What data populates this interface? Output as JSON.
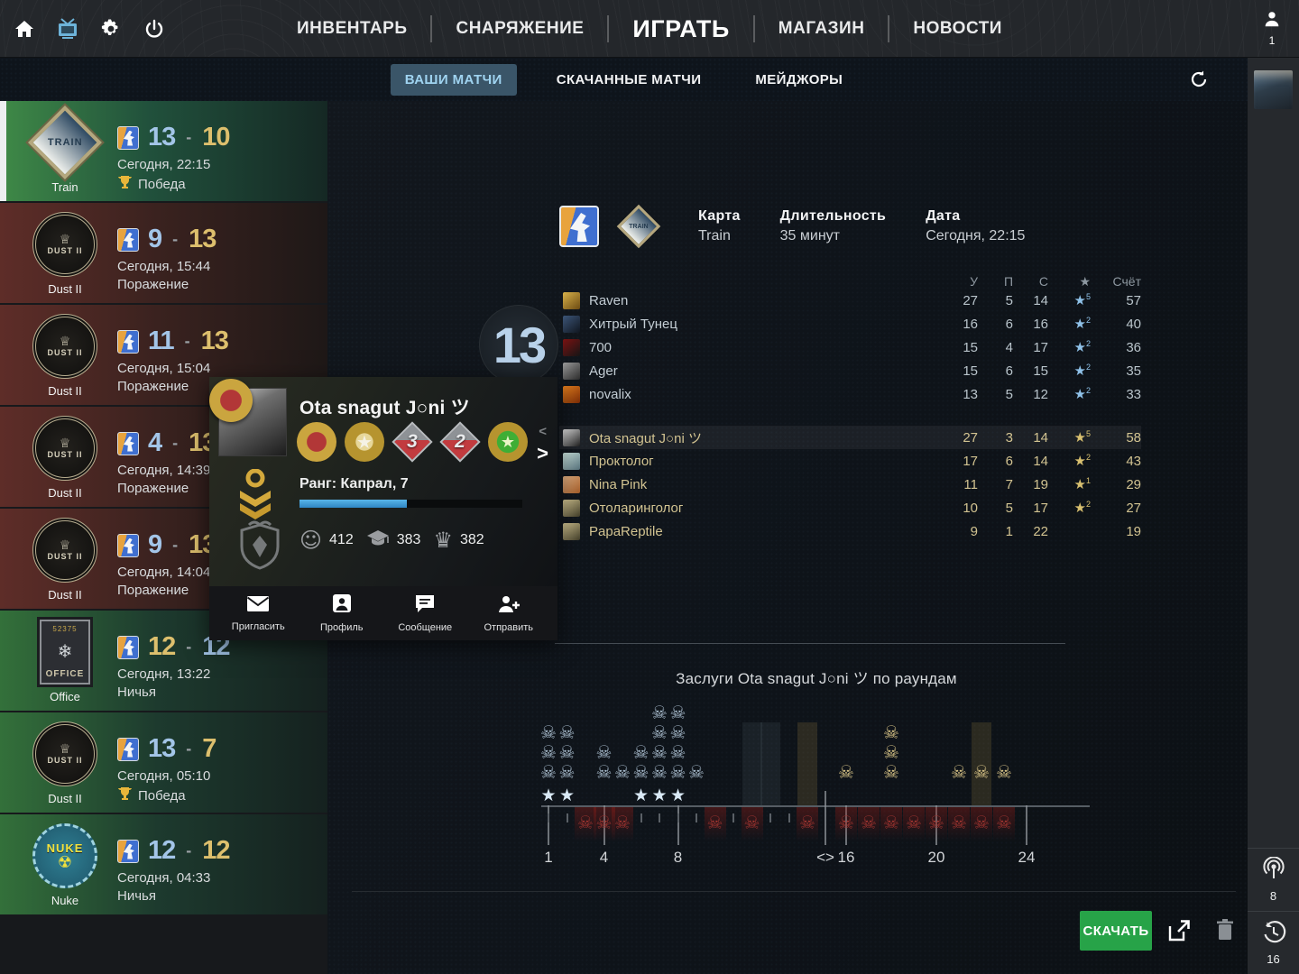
{
  "topnav": {
    "icons": [
      {
        "name": "home-icon"
      },
      {
        "name": "tv-icon",
        "active": true
      },
      {
        "name": "gear-icon"
      },
      {
        "name": "power-icon"
      }
    ],
    "items": [
      {
        "label": "ИНВЕНТАРЬ",
        "active": false
      },
      {
        "label": "СНАРЯЖЕНИЕ",
        "active": false
      },
      {
        "label": "ИГРАТЬ",
        "active": true
      },
      {
        "label": "МАГАЗИН",
        "active": false
      },
      {
        "label": "НОВОСТИ",
        "active": false
      }
    ],
    "user_count": "1"
  },
  "tabbar": {
    "tabs": [
      {
        "label": "ВАШИ МАТЧИ",
        "active": true
      },
      {
        "label": "СКАЧАННЫЕ МАТЧИ",
        "active": false
      },
      {
        "label": "МЕЙДЖОРЫ",
        "active": false
      }
    ]
  },
  "sidebar": {
    "matches": [
      {
        "map": "Train",
        "badge": "train",
        "score_left": "13",
        "score_right": "10",
        "left_color": "blue",
        "right_color": "gold",
        "date": "Сегодня, 22:15",
        "result": "Победа",
        "result_type": "win",
        "trophy": true,
        "selected": true
      },
      {
        "map": "Dust II",
        "badge": "dust2",
        "score_left": "9",
        "score_right": "13",
        "left_color": "blue",
        "right_color": "gold",
        "date": "Сегодня, 15:44",
        "result": "Поражение",
        "result_type": "loss",
        "trophy": false,
        "selected": false
      },
      {
        "map": "Dust II",
        "badge": "dust2",
        "score_left": "11",
        "score_right": "13",
        "left_color": "blue",
        "right_color": "gold",
        "date": "Сегодня, 15:04",
        "result": "Поражение",
        "result_type": "loss",
        "trophy": false,
        "selected": false
      },
      {
        "map": "Dust II",
        "badge": "dust2",
        "score_left": "4",
        "score_right": "13",
        "left_color": "blue",
        "right_color": "gold",
        "date": "Сегодня, 14:39",
        "result": "Поражение",
        "result_type": "loss",
        "trophy": false,
        "selected": false
      },
      {
        "map": "Dust II",
        "badge": "dust2",
        "score_left": "9",
        "score_right": "13",
        "left_color": "blue",
        "right_color": "gold",
        "date": "Сегодня, 14:04",
        "result": "Поражение",
        "result_type": "loss",
        "trophy": false,
        "selected": false
      },
      {
        "map": "Office",
        "badge": "office",
        "score_left": "12",
        "score_right": "12",
        "left_color": "gold",
        "right_color": "blue",
        "date": "Сегодня, 13:22",
        "result": "Ничья",
        "result_type": "draw",
        "trophy": false,
        "selected": false
      },
      {
        "map": "Dust II",
        "badge": "dust2",
        "score_left": "13",
        "score_right": "7",
        "left_color": "blue",
        "right_color": "gold",
        "date": "Сегодня, 05:10",
        "result": "Победа",
        "result_type": "win",
        "trophy": true,
        "selected": false
      },
      {
        "map": "Nuke",
        "badge": "nuke",
        "score_left": "12",
        "score_right": "12",
        "left_color": "blue",
        "right_color": "gold",
        "date": "Сегодня, 04:33",
        "result": "Ничья",
        "result_type": "draw",
        "trophy": false,
        "selected": false
      }
    ]
  },
  "match": {
    "header": {
      "map_label": "Карта",
      "map_value": "Train",
      "duration_label": "Длительность",
      "duration_value": "35 минут",
      "date_label": "Дата",
      "date_value": "Сегодня, 22:15"
    },
    "columns": [
      "У",
      "П",
      "С",
      "★",
      "Счёт"
    ],
    "team1": {
      "big_score": "13",
      "players": [
        {
          "name": "Raven",
          "k": "27",
          "a": "5",
          "d": "14",
          "stars": "5",
          "score": "57",
          "avatar": "#d9b24a,#6b4a12",
          "highlight": false
        },
        {
          "name": "Хитрый Тунец",
          "k": "16",
          "a": "6",
          "d": "16",
          "stars": "2",
          "score": "40",
          "avatar": "#3c5578,#10161f",
          "highlight": false
        },
        {
          "name": "700",
          "k": "15",
          "a": "4",
          "d": "17",
          "stars": "2",
          "score": "36",
          "avatar": "#7a1212,#151515",
          "highlight": false
        },
        {
          "name": "Ager",
          "k": "15",
          "a": "6",
          "d": "15",
          "stars": "2",
          "score": "35",
          "avatar": "#9b9b9b,#2c2c2c",
          "highlight": false
        },
        {
          "name": "novalix",
          "k": "13",
          "a": "5",
          "d": "12",
          "stars": "2",
          "score": "33",
          "avatar": "#e8821f,#7a2b06",
          "highlight": false
        }
      ]
    },
    "team2": {
      "players": [
        {
          "name": "Ota snagut J○ni ツ",
          "k": "27",
          "a": "3",
          "d": "14",
          "stars": "5",
          "score": "58",
          "avatar": "#e0e0e0,#1d1d1d",
          "highlight": true
        },
        {
          "name": "Проктолог",
          "k": "17",
          "a": "6",
          "d": "14",
          "stars": "2",
          "score": "43",
          "avatar": "#cfe8e2,#55707a",
          "highlight": false
        },
        {
          "name": "Nina Pink",
          "k": "11",
          "a": "7",
          "d": "19",
          "stars": "1",
          "score": "29",
          "avatar": "#e2b183,#a35c28",
          "highlight": false
        },
        {
          "name": "Отоларинголог",
          "k": "10",
          "a": "5",
          "d": "17",
          "stars": "2",
          "score": "27",
          "avatar": "#d3c592,#403c28",
          "highlight": false
        },
        {
          "name": "PapaReptile",
          "k": "9",
          "a": "1",
          "d": "22",
          "stars": "",
          "score": "19",
          "avatar": "#d3c592,#403c28",
          "highlight": false
        }
      ]
    }
  },
  "popup": {
    "name": "Ota snagut J○ni ツ",
    "rank_label": "Ранг: Капрал, 7",
    "rank_progress_pct": 48,
    "medals": [
      {
        "name": "service-medal",
        "style": "coin-red",
        "num": ""
      },
      {
        "name": "star-medal",
        "style": "gold-star",
        "num": ""
      },
      {
        "name": "operation-pin-3",
        "style": "pin",
        "num": "3"
      },
      {
        "name": "operation-pin-2",
        "style": "pin",
        "num": "2"
      },
      {
        "name": "green-medal",
        "style": "coin-green",
        "num": ""
      }
    ],
    "stats": [
      {
        "icon": "smiley-icon",
        "glyph": "☺",
        "value": "412"
      },
      {
        "icon": "graduation-icon",
        "glyph": "",
        "value": "383"
      },
      {
        "icon": "crown-icon",
        "glyph": "♛",
        "value": "382"
      }
    ],
    "actions": [
      {
        "icon": "envelope-icon",
        "label": "Пригласить"
      },
      {
        "icon": "profile-icon",
        "label": "Профиль"
      },
      {
        "icon": "message-icon",
        "label": "Сообщение"
      },
      {
        "icon": "send-icon",
        "label": "Отправить"
      }
    ]
  },
  "chart_data": {
    "type": "round-timeline",
    "title": "Заслуги Ota snagut J○ni ツ по раундам",
    "legend": "skulls above axis = kills per round (blue first half, gold second half); stars = round MVP; red skulls below axis = player died that round",
    "halftime_after_round": 15,
    "halftime_label": "<>",
    "axis_ticks": [
      1,
      4,
      8,
      16,
      20,
      24
    ],
    "xlim": [
      1,
      24
    ],
    "first_half_color": "#a8bccd",
    "second_half_color": "#d6c286",
    "death_color": "#9e3430",
    "rounds": [
      {
        "r": 1,
        "kills": 3,
        "death": false,
        "mvp": true,
        "highlight": ""
      },
      {
        "r": 2,
        "kills": 3,
        "death": false,
        "mvp": true,
        "highlight": ""
      },
      {
        "r": 3,
        "kills": 0,
        "death": true,
        "mvp": false,
        "highlight": ""
      },
      {
        "r": 4,
        "kills": 2,
        "death": true,
        "mvp": false,
        "highlight": ""
      },
      {
        "r": 5,
        "kills": 1,
        "death": true,
        "mvp": false,
        "highlight": ""
      },
      {
        "r": 6,
        "kills": 2,
        "death": false,
        "mvp": true,
        "highlight": ""
      },
      {
        "r": 7,
        "kills": 4,
        "death": false,
        "mvp": true,
        "highlight": ""
      },
      {
        "r": 8,
        "kills": 4,
        "death": false,
        "mvp": true,
        "highlight": ""
      },
      {
        "r": 9,
        "kills": 1,
        "death": false,
        "mvp": false,
        "highlight": ""
      },
      {
        "r": 10,
        "kills": 0,
        "death": true,
        "mvp": false,
        "highlight": ""
      },
      {
        "r": 11,
        "kills": 0,
        "death": false,
        "mvp": false,
        "highlight": ""
      },
      {
        "r": 12,
        "kills": 0,
        "death": true,
        "mvp": false,
        "highlight": "grey"
      },
      {
        "r": 13,
        "kills": 0,
        "death": false,
        "mvp": false,
        "highlight": "grey"
      },
      {
        "r": 14,
        "kills": 0,
        "death": false,
        "mvp": false,
        "highlight": ""
      },
      {
        "r": 15,
        "kills": 0,
        "death": true,
        "mvp": false,
        "highlight": "gold"
      },
      {
        "r": 16,
        "kills": 1,
        "death": true,
        "mvp": false,
        "highlight": ""
      },
      {
        "r": 17,
        "kills": 0,
        "death": true,
        "mvp": false,
        "highlight": ""
      },
      {
        "r": 18,
        "kills": 3,
        "death": true,
        "mvp": false,
        "highlight": ""
      },
      {
        "r": 19,
        "kills": 0,
        "death": true,
        "mvp": false,
        "highlight": ""
      },
      {
        "r": 20,
        "kills": 0,
        "death": true,
        "mvp": false,
        "highlight": ""
      },
      {
        "r": 21,
        "kills": 1,
        "death": true,
        "mvp": false,
        "highlight": ""
      },
      {
        "r": 22,
        "kills": 1,
        "death": true,
        "mvp": false,
        "highlight": "gold"
      },
      {
        "r": 23,
        "kills": 1,
        "death": true,
        "mvp": false,
        "highlight": ""
      }
    ]
  },
  "footer": {
    "download_label": "СКАЧАТЬ"
  },
  "right_rail": {
    "stats": [
      {
        "icon": "broadcast-icon",
        "value": "8"
      },
      {
        "icon": "history-icon",
        "value": "16"
      }
    ]
  }
}
